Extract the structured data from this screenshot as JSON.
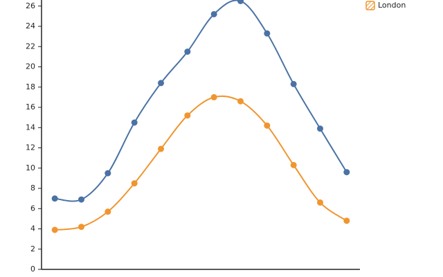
{
  "chart_data": {
    "type": "line",
    "categories": [
      null,
      null,
      null,
      null,
      null,
      null,
      null,
      null,
      null,
      null,
      null,
      null
    ],
    "series": [
      {
        "color": "#4a72a6",
        "values": [
          7.0,
          6.9,
          9.5,
          14.5,
          18.4,
          21.5,
          25.2,
          26.5,
          23.3,
          18.3,
          13.9,
          9.6
        ]
      },
      {
        "name": "London",
        "color": "#f0952f",
        "values": [
          3.9,
          4.2,
          5.7,
          8.5,
          11.9,
          15.2,
          17.0,
          16.6,
          14.2,
          10.3,
          6.6,
          4.8
        ]
      }
    ],
    "ylim": [
      0,
      26.6
    ],
    "yticks": [
      0,
      2,
      4,
      6,
      8,
      10,
      12,
      14,
      16,
      18,
      20,
      22,
      24,
      26
    ],
    "grid": false,
    "legend": "top-right"
  }
}
